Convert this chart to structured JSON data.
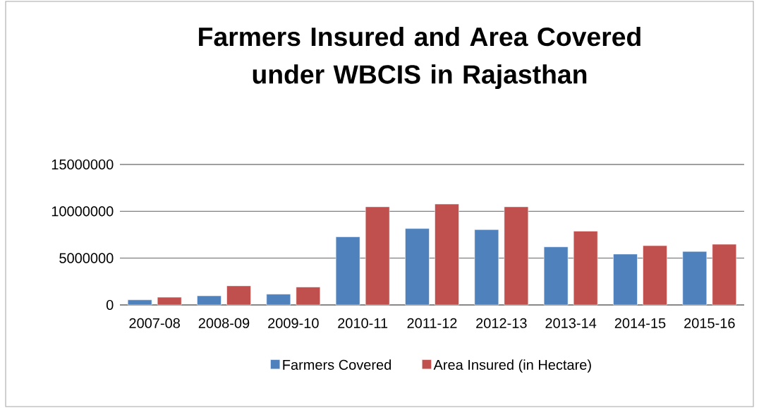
{
  "chart_data": {
    "type": "bar",
    "title": "Farmers Insured and Area Covered under WBCIS in Rajasthan",
    "categories": [
      "2007-08",
      "2008-09",
      "2009-10",
      "2010-11",
      "2011-12",
      "2012-13",
      "2013-14",
      "2014-15",
      "2015-16"
    ],
    "series": [
      {
        "name": "Farmers Covered",
        "color": "#4f81bd",
        "values": [
          540000,
          970000,
          1150000,
          7270000,
          8160000,
          8040000,
          6200000,
          5430000,
          5710000
        ]
      },
      {
        "name": "Area Insured (in Hectare)",
        "color": "#c0504d",
        "values": [
          820000,
          2040000,
          1910000,
          10480000,
          10770000,
          10480000,
          7880000,
          6330000,
          6480000
        ]
      }
    ],
    "ylim": [
      0,
      15000000
    ],
    "yticks": [
      0,
      5000000,
      10000000,
      15000000
    ],
    "grid": "y",
    "legend": "bottom"
  }
}
